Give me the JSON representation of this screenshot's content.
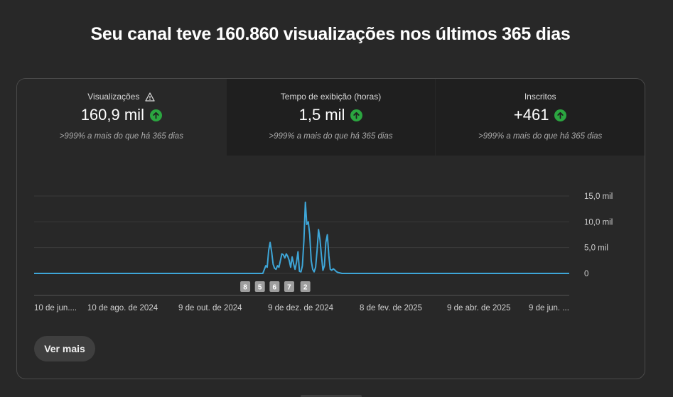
{
  "headline": "Seu canal teve 160.860 visualizações nos últimos 365 dias",
  "metrics": [
    {
      "label": "Visualizações",
      "value": "160,9 mil",
      "sub": ">999% a mais do que há 365 dias",
      "warning": true,
      "icon": "arrow-up-circle-icon"
    },
    {
      "label": "Tempo de exibição (horas)",
      "value": "1,5 mil",
      "sub": ">999% a mais do que há 365 dias",
      "warning": false,
      "icon": "arrow-up-circle-icon"
    },
    {
      "label": "Inscritos",
      "value": "+461",
      "sub": ">999% a mais do que há 365 dias",
      "warning": false,
      "icon": "arrow-up-circle-icon"
    }
  ],
  "colors": {
    "line": "#3ea6d8",
    "up": "#2ba640",
    "grid": "#3a3a3a",
    "marker": "#9e9e9e"
  },
  "chart_data": {
    "type": "line",
    "ylim": [
      0,
      15000
    ],
    "y_ticks": [
      {
        "value": 15000,
        "label": "15,0 mil"
      },
      {
        "value": 10000,
        "label": "10,0 mil"
      },
      {
        "value": 5000,
        "label": "5,0 mil"
      },
      {
        "value": 0,
        "label": "0"
      }
    ],
    "x_tick_labels": [
      "10 de jun....",
      "10 de ago. de 2024",
      "9 de out. de 2024",
      "9 de dez. de 2024",
      "8 de fev. de 2025",
      "9 de abr. de 2025",
      "9 de jun. ..."
    ],
    "x_range": [
      0,
      365
    ],
    "series": [
      {
        "x": [
          0,
          156,
          158,
          159,
          160,
          161,
          162,
          163,
          164,
          165,
          166,
          167,
          168,
          169,
          170,
          171,
          172,
          173,
          174,
          175,
          176,
          177,
          178,
          179,
          180,
          181,
          182,
          183,
          184,
          185,
          186,
          187,
          188,
          189,
          190,
          191,
          192,
          193,
          194,
          195,
          196,
          197,
          198,
          199,
          200,
          201,
          202,
          203,
          204,
          205,
          206,
          207,
          210,
          365
        ],
        "y": [
          0,
          0,
          1500,
          1200,
          4500,
          6000,
          4200,
          1800,
          1000,
          800,
          1500,
          1200,
          2500,
          3800,
          3600,
          3000,
          3800,
          3300,
          2500,
          1200,
          3200,
          1800,
          800,
          2200,
          4200,
          400,
          300,
          1500,
          6300,
          13800,
          9500,
          10000,
          7500,
          2500,
          800,
          300,
          1200,
          4500,
          8500,
          6500,
          3300,
          600,
          1500,
          6000,
          7500,
          3500,
          800,
          600,
          900,
          700,
          400,
          200,
          0,
          0
        ]
      }
    ],
    "markers": [
      {
        "x": 144,
        "label": "8"
      },
      {
        "x": 154,
        "label": "5"
      },
      {
        "x": 164,
        "label": "6"
      },
      {
        "x": 174,
        "label": "7"
      },
      {
        "x": 185,
        "label": "2"
      }
    ],
    "grid": true
  },
  "more_button": "Ver mais"
}
